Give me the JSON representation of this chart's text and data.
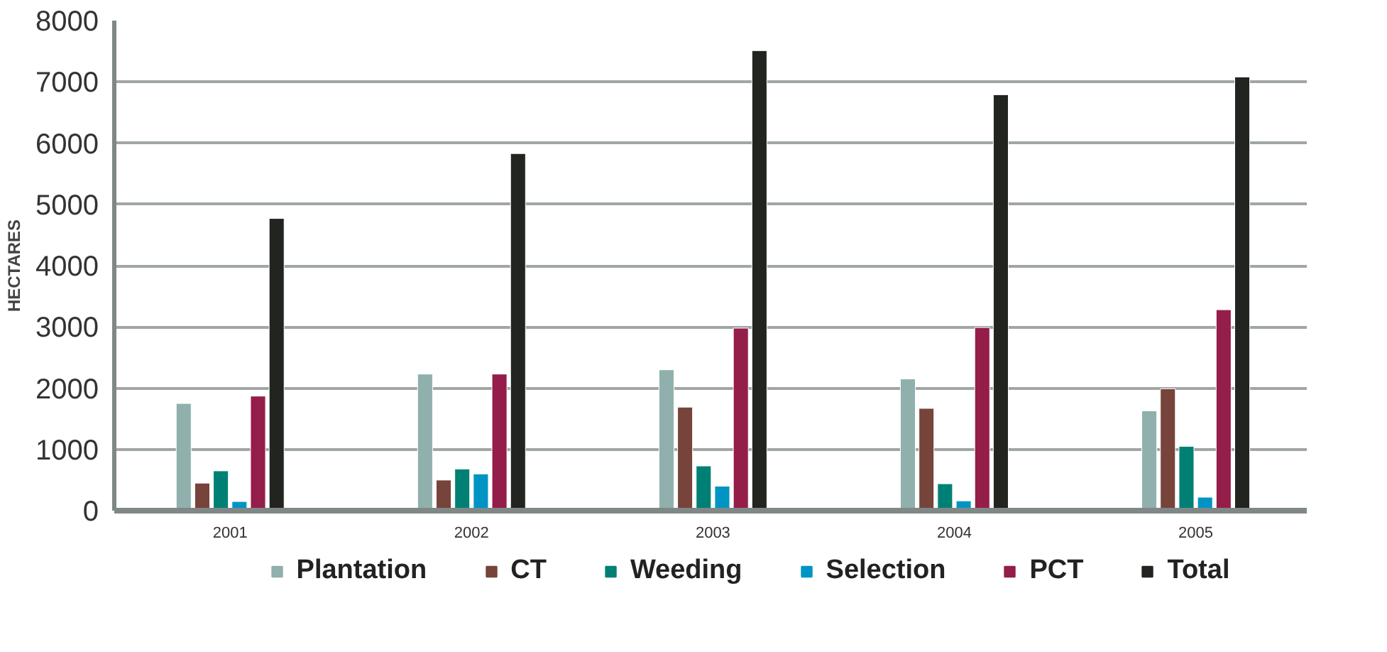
{
  "chart_data": {
    "type": "bar",
    "ylabel": "HECTARES",
    "categories": [
      "2001",
      "2002",
      "2003",
      "2004",
      "2005"
    ],
    "series": [
      {
        "name": "Plantation",
        "color": "#8fb0ad",
        "values": [
          1750,
          2230,
          2300,
          2150,
          1630
        ]
      },
      {
        "name": "CT",
        "color": "#76443a",
        "values": [
          450,
          500,
          1690,
          1670,
          1990
        ]
      },
      {
        "name": "Weeding",
        "color": "#008075",
        "values": [
          650,
          680,
          730,
          440,
          1050
        ]
      },
      {
        "name": "Selection",
        "color": "#0094c4",
        "values": [
          150,
          600,
          400,
          160,
          220
        ]
      },
      {
        "name": "PCT",
        "color": "#941d4a",
        "values": [
          1870,
          2230,
          2980,
          2990,
          3280
        ]
      },
      {
        "name": "Total",
        "color": "#222420",
        "values": [
          4770,
          5830,
          7510,
          6790,
          7080
        ]
      }
    ],
    "ylim": [
      0,
      8000
    ],
    "yticks": [
      0,
      1000,
      2000,
      3000,
      4000,
      5000,
      6000,
      7000,
      8000
    ],
    "grid": "y",
    "legend": "bottom"
  }
}
